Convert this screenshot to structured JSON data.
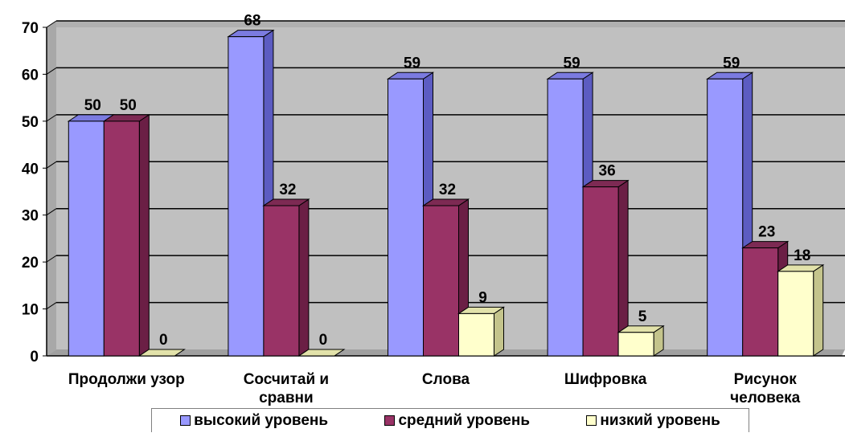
{
  "chart_data": {
    "type": "bar",
    "categories": [
      "Продолжи узор",
      "Сосчитай и сравни",
      "Слова",
      "Шифровка",
      "Рисунок человека"
    ],
    "category_lines": [
      [
        "Продолжи узор"
      ],
      [
        "Сосчитай и",
        "сравни"
      ],
      [
        "Слова"
      ],
      [
        "Шифровка"
      ],
      [
        "Рисунок",
        "человека"
      ]
    ],
    "series": [
      {
        "name": "высокий уровень",
        "values": [
          50,
          68,
          59,
          59,
          59
        ],
        "labels": [
          "50",
          "68",
          "59",
          "59",
          "59"
        ]
      },
      {
        "name": "средний уровень",
        "values": [
          50,
          32,
          32,
          36,
          23
        ],
        "labels": [
          "50",
          "32",
          "32",
          "36",
          "23"
        ]
      },
      {
        "name": "низкий уровень",
        "values": [
          0,
          0,
          9,
          5,
          18
        ],
        "labels": [
          "0",
          "0",
          "9",
          "5",
          "18"
        ]
      }
    ],
    "y_ticks": [
      "0",
      "10",
      "20",
      "30",
      "40",
      "50",
      "60",
      "70"
    ],
    "ylim": [
      0,
      70
    ],
    "grid": true,
    "legend": "bottom",
    "colors": {
      "series": [
        "#9999ff",
        "#993366",
        "#ffffcc"
      ],
      "series_side": [
        "#5c5cc2",
        "#6b1f45",
        "#c4c48c"
      ],
      "series_top": [
        "#7b7be0",
        "#7d2a53",
        "#e2e2aa"
      ],
      "wall": "#c0c0c0",
      "floor": "#a0a0a0"
    }
  }
}
